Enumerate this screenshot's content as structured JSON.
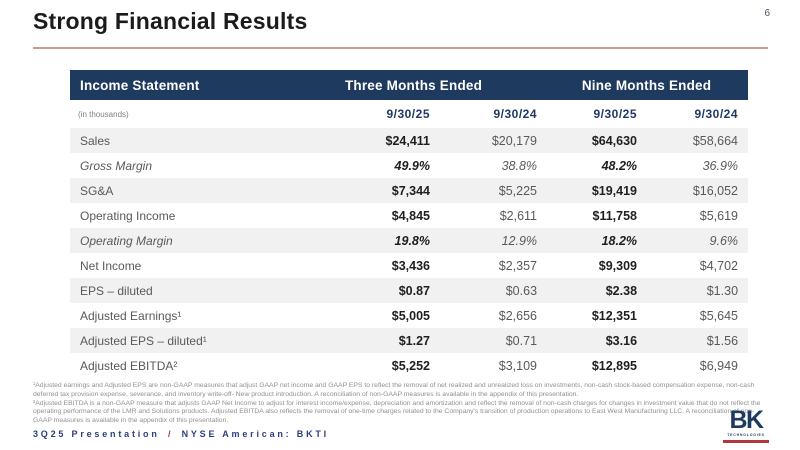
{
  "page": {
    "number": "6"
  },
  "title": "Strong Financial Results",
  "table": {
    "header": {
      "title": "Income Statement",
      "three_months": "Three Months Ended",
      "nine_months": "Nine Months Ended"
    },
    "subheader": {
      "units": "(in thousands)",
      "dates": [
        "9/30/25",
        "9/30/24",
        "9/30/25",
        "9/30/24"
      ]
    },
    "rows": [
      {
        "label": "Sales",
        "italic": false,
        "values": [
          "$24,411",
          "$20,179",
          "$64,630",
          "$58,664"
        ]
      },
      {
        "label": "Gross Margin",
        "italic": true,
        "values": [
          "49.9%",
          "38.8%",
          "48.2%",
          "36.9%"
        ]
      },
      {
        "label": "SG&A",
        "italic": false,
        "values": [
          "$7,344",
          "$5,225",
          "$19,419",
          "$16,052"
        ]
      },
      {
        "label": "Operating Income",
        "italic": false,
        "values": [
          "$4,845",
          "$2,611",
          "$11,758",
          "$5,619"
        ]
      },
      {
        "label": "Operating Margin",
        "italic": true,
        "values": [
          "19.8%",
          "12.9%",
          "18.2%",
          "9.6%"
        ]
      },
      {
        "label": "Net Income",
        "italic": false,
        "values": [
          "$3,436",
          "$2,357",
          "$9,309",
          "$4,702"
        ]
      },
      {
        "label": "EPS – diluted",
        "italic": false,
        "values": [
          "$0.87",
          "$0.63",
          "$2.38",
          "$1.30"
        ]
      },
      {
        "label": "Adjusted Earnings¹",
        "italic": false,
        "values": [
          "$5,005",
          "$2,656",
          "$12,351",
          "$5,645"
        ]
      },
      {
        "label": "Adjusted EPS – diluted¹",
        "italic": false,
        "values": [
          "$1.27",
          "$0.71",
          "$3.16",
          "$1.56"
        ]
      },
      {
        "label": "Adjusted EBITDA²",
        "italic": false,
        "values": [
          "$5,252",
          "$3,109",
          "$12,895",
          "$6,949"
        ]
      }
    ]
  },
  "footnotes": [
    "¹Adjusted earnings and Adjusted EPS are non-GAAP measures that adjust GAAP net income and GAAP EPS to reflect the removal of net realized and unrealized loss on investments, non-cash stock-based compensation expense, non-cash deferred tax provision expense, severance, and inventory write-off- New product introduction.  A reconciliation of non-GAAP measures is available in the appendix of this presentation.",
    "²Adjusted EBITDA is a non-GAAP measure that adjusts GAAP Net Income to adjust for interest income/expense, depreciation and amortization and reflect  the removal of non-cash charges for changes in investment value that do not reflect the operating performance of the LMR and Solutions products.  Adjusted EBITDA also reflects the removal of one-time charges related to the Company's transition of production operations to East West Manufacturing LLC.  A reconciliation of non-GAAP measures is available in the appendix of this presentation."
  ],
  "footer": {
    "left": "3Q25 Presentation",
    "separator": "/",
    "right": "NYSE American: BKTI"
  },
  "logo": {
    "text": "BK",
    "subtext": "TECHNOLOGIES"
  },
  "colors": {
    "header_bg": "#1e3a5f",
    "date_navy": "#1f3864",
    "title_underline": "#c79a92",
    "row_stripe": "#f1f1f1",
    "footer_navy": "#2c3f7c",
    "accent_red": "#b03a3a"
  }
}
